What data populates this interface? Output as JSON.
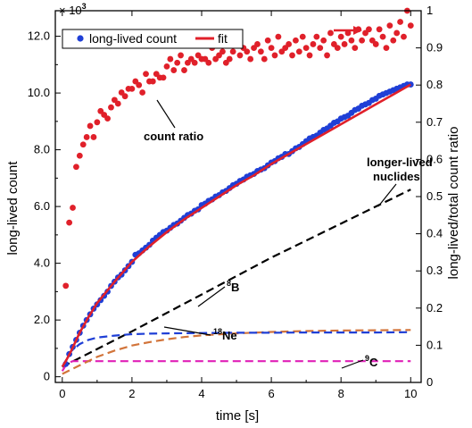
{
  "chart_data": {
    "type": "scatter",
    "xlabel": "time [s]",
    "ylabel_left": "long-lived count",
    "ylabel_right": "long-lived/total count ratio",
    "left_multiplier_label": "× 10",
    "left_multiplier_exponent": "3",
    "xlim": [
      -0.2,
      10.3
    ],
    "ylim_left": [
      -0.2,
      12.9
    ],
    "ylim_right": [
      0.0,
      1.0
    ],
    "x_ticks": [
      "0",
      "2",
      "4",
      "6",
      "8",
      "10"
    ],
    "y_left_ticks": [
      "0",
      "2.0",
      "4.0",
      "6.0",
      "8.0",
      "10.0",
      "12.0"
    ],
    "y_right_ticks": [
      "0",
      "0.1",
      "0.2",
      "0.3",
      "0.4",
      "0.5",
      "0.6",
      "0.7",
      "0.8",
      "0.9",
      "1"
    ],
    "legend": {
      "position": "top-left",
      "entries": [
        "long-lived count",
        "fit"
      ]
    },
    "colors": {
      "count": "#1f3fd6",
      "fit": "#e0202a",
      "ratio": "#e0202a",
      "longer_lived": "#000000",
      "B8": "#1f3fd6",
      "Ne18": "#d2743a",
      "C9": "#e020b8"
    },
    "annotations": {
      "count_ratio": "count ratio",
      "longer_lived_1": "longer-lived",
      "longer_lived_2": "nuclides",
      "b8_mass": "8",
      "b8_symbol": "B",
      "ne18_mass": "18",
      "ne18_symbol": "Ne",
      "c9_mass": "9",
      "c9_symbol": "C"
    },
    "series": [
      {
        "name": "long-lived count",
        "kind": "scatter",
        "axis": "left",
        "x": [
          0.1,
          0.2,
          0.3,
          0.4,
          0.5,
          0.6,
          0.7,
          0.8,
          0.9,
          1.0,
          1.1,
          1.2,
          1.3,
          1.4,
          1.5,
          1.6,
          1.7,
          1.8,
          1.9,
          2.0,
          2.1,
          2.2,
          2.3,
          2.4,
          2.5,
          2.6,
          2.7,
          2.8,
          2.9,
          3.0,
          3.1,
          3.2,
          3.3,
          3.4,
          3.5,
          3.6,
          3.7,
          3.8,
          3.9,
          4.0,
          4.1,
          4.2,
          4.3,
          4.4,
          4.5,
          4.6,
          4.7,
          4.8,
          4.9,
          5.0,
          5.1,
          5.2,
          5.3,
          5.4,
          5.5,
          5.6,
          5.7,
          5.8,
          5.9,
          6.0,
          6.1,
          6.2,
          6.3,
          6.4,
          6.5,
          6.6,
          6.7,
          6.8,
          6.9,
          7.0,
          7.1,
          7.2,
          7.3,
          7.4,
          7.5,
          7.6,
          7.7,
          7.8,
          7.9,
          8.0,
          8.1,
          8.2,
          8.3,
          8.4,
          8.5,
          8.6,
          8.7,
          8.8,
          8.9,
          9.0,
          9.1,
          9.2,
          9.3,
          9.4,
          9.5,
          9.6,
          9.7,
          9.8,
          9.9,
          10.0
        ],
        "y": [
          0.45,
          0.8,
          1.05,
          1.3,
          1.55,
          1.8,
          2.0,
          2.2,
          2.4,
          2.55,
          2.7,
          2.85,
          3.0,
          3.2,
          3.35,
          3.5,
          3.6,
          3.75,
          3.9,
          4.05,
          4.3,
          4.35,
          4.45,
          4.55,
          4.65,
          4.8,
          4.9,
          5.0,
          5.1,
          5.15,
          5.25,
          5.35,
          5.4,
          5.5,
          5.6,
          5.7,
          5.75,
          5.85,
          5.9,
          6.05,
          6.1,
          6.2,
          6.25,
          6.35,
          6.4,
          6.5,
          6.55,
          6.65,
          6.75,
          6.8,
          6.9,
          6.95,
          7.05,
          7.1,
          7.15,
          7.25,
          7.3,
          7.35,
          7.45,
          7.55,
          7.6,
          7.7,
          7.75,
          7.85,
          7.85,
          7.95,
          8.05,
          8.1,
          8.2,
          8.3,
          8.4,
          8.45,
          8.5,
          8.6,
          8.7,
          8.75,
          8.85,
          8.95,
          9.0,
          9.1,
          9.15,
          9.2,
          9.3,
          9.4,
          9.45,
          9.55,
          9.6,
          9.65,
          9.75,
          9.8,
          9.9,
          9.95,
          10.0,
          10.05,
          10.1,
          10.15,
          10.2,
          10.25,
          10.3,
          10.3
        ]
      },
      {
        "name": "fit",
        "kind": "line",
        "axis": "left",
        "x": [
          0.0,
          0.1,
          0.25,
          0.5,
          0.75,
          1.0,
          1.5,
          2.0,
          2.5,
          3.0,
          3.5,
          4.0,
          4.5,
          5.0,
          5.5,
          6.0,
          6.5,
          7.0,
          7.5,
          8.0,
          8.5,
          9.0,
          9.5,
          10.0
        ],
        "y": [
          0.35,
          0.55,
          0.9,
          1.55,
          2.1,
          2.6,
          3.35,
          4.05,
          4.6,
          5.1,
          5.55,
          5.95,
          6.35,
          6.75,
          7.1,
          7.5,
          7.85,
          8.2,
          8.55,
          8.9,
          9.25,
          9.6,
          9.95,
          10.3
        ]
      },
      {
        "name": "count ratio",
        "kind": "scatter",
        "axis": "right",
        "x": [
          0.1,
          0.2,
          0.3,
          0.4,
          0.5,
          0.6,
          0.7,
          0.8,
          0.9,
          1.0,
          1.1,
          1.2,
          1.3,
          1.4,
          1.5,
          1.6,
          1.7,
          1.8,
          1.9,
          2.0,
          2.1,
          2.2,
          2.3,
          2.4,
          2.5,
          2.6,
          2.7,
          2.8,
          2.9,
          3.0,
          3.1,
          3.2,
          3.3,
          3.4,
          3.5,
          3.6,
          3.7,
          3.8,
          3.9,
          4.0,
          4.1,
          4.2,
          4.3,
          4.4,
          4.5,
          4.6,
          4.7,
          4.8,
          4.9,
          5.0,
          5.1,
          5.2,
          5.3,
          5.4,
          5.5,
          5.6,
          5.7,
          5.8,
          5.9,
          6.0,
          6.1,
          6.2,
          6.3,
          6.4,
          6.5,
          6.6,
          6.7,
          6.8,
          6.9,
          7.0,
          7.1,
          7.2,
          7.3,
          7.4,
          7.5,
          7.6,
          7.7,
          7.8,
          7.9,
          8.0,
          8.1,
          8.2,
          8.3,
          8.4,
          8.5,
          8.6,
          8.7,
          8.8,
          8.9,
          9.0,
          9.1,
          9.2,
          9.3,
          9.4,
          9.5,
          9.6,
          9.7,
          9.8,
          9.9,
          10.0
        ],
        "y": [
          0.26,
          0.43,
          0.47,
          0.58,
          0.61,
          0.64,
          0.66,
          0.69,
          0.66,
          0.7,
          0.73,
          0.72,
          0.71,
          0.74,
          0.76,
          0.75,
          0.78,
          0.77,
          0.79,
          0.79,
          0.81,
          0.8,
          0.78,
          0.83,
          0.81,
          0.81,
          0.83,
          0.82,
          0.82,
          0.85,
          0.87,
          0.84,
          0.86,
          0.88,
          0.84,
          0.86,
          0.87,
          0.86,
          0.88,
          0.87,
          0.87,
          0.86,
          0.9,
          0.87,
          0.88,
          0.89,
          0.86,
          0.87,
          0.89,
          0.91,
          0.88,
          0.9,
          0.89,
          0.87,
          0.9,
          0.91,
          0.89,
          0.87,
          0.92,
          0.9,
          0.88,
          0.93,
          0.89,
          0.9,
          0.91,
          0.88,
          0.92,
          0.89,
          0.93,
          0.9,
          0.88,
          0.91,
          0.93,
          0.9,
          0.92,
          0.88,
          0.94,
          0.91,
          0.9,
          0.93,
          0.91,
          0.94,
          0.92,
          0.9,
          0.95,
          0.92,
          0.94,
          0.95,
          0.92,
          0.91,
          0.95,
          0.93,
          0.9,
          0.96,
          0.92,
          0.94,
          0.97,
          0.93,
          1.0,
          0.96
        ]
      },
      {
        "name": "longer-lived nuclides",
        "kind": "dashed-line",
        "axis": "left",
        "x": [
          0.0,
          2.0,
          4.0,
          6.0,
          8.0,
          10.0
        ],
        "y": [
          0.35,
          1.6,
          2.9,
          4.2,
          5.4,
          6.6
        ]
      },
      {
        "name": "8B",
        "kind": "dashed-line",
        "axis": "left",
        "x": [
          0.0,
          0.25,
          0.5,
          0.75,
          1.0,
          1.5,
          2.0,
          2.5,
          3.0,
          4.0,
          5.0,
          6.0,
          7.0,
          8.0,
          9.0,
          10.0
        ],
        "y": [
          0.35,
          0.9,
          1.15,
          1.3,
          1.38,
          1.45,
          1.5,
          1.52,
          1.53,
          1.54,
          1.55,
          1.55,
          1.56,
          1.56,
          1.56,
          1.57
        ]
      },
      {
        "name": "18Ne",
        "kind": "dashed-line",
        "axis": "left",
        "x": [
          0.0,
          0.5,
          1.0,
          1.5,
          2.0,
          2.5,
          3.0,
          3.5,
          4.0,
          5.0,
          6.0,
          7.0,
          8.0,
          9.0,
          10.0
        ],
        "y": [
          0.1,
          0.4,
          0.7,
          0.92,
          1.1,
          1.22,
          1.32,
          1.4,
          1.46,
          1.53,
          1.58,
          1.61,
          1.63,
          1.64,
          1.65
        ]
      },
      {
        "name": "9C",
        "kind": "dashed-line",
        "axis": "left",
        "x": [
          0.0,
          0.1,
          0.2,
          0.3,
          1.0,
          2.0,
          4.0,
          6.0,
          8.0,
          10.0
        ],
        "y": [
          0.2,
          0.4,
          0.5,
          0.55,
          0.55,
          0.55,
          0.55,
          0.55,
          0.55,
          0.55
        ]
      }
    ]
  }
}
